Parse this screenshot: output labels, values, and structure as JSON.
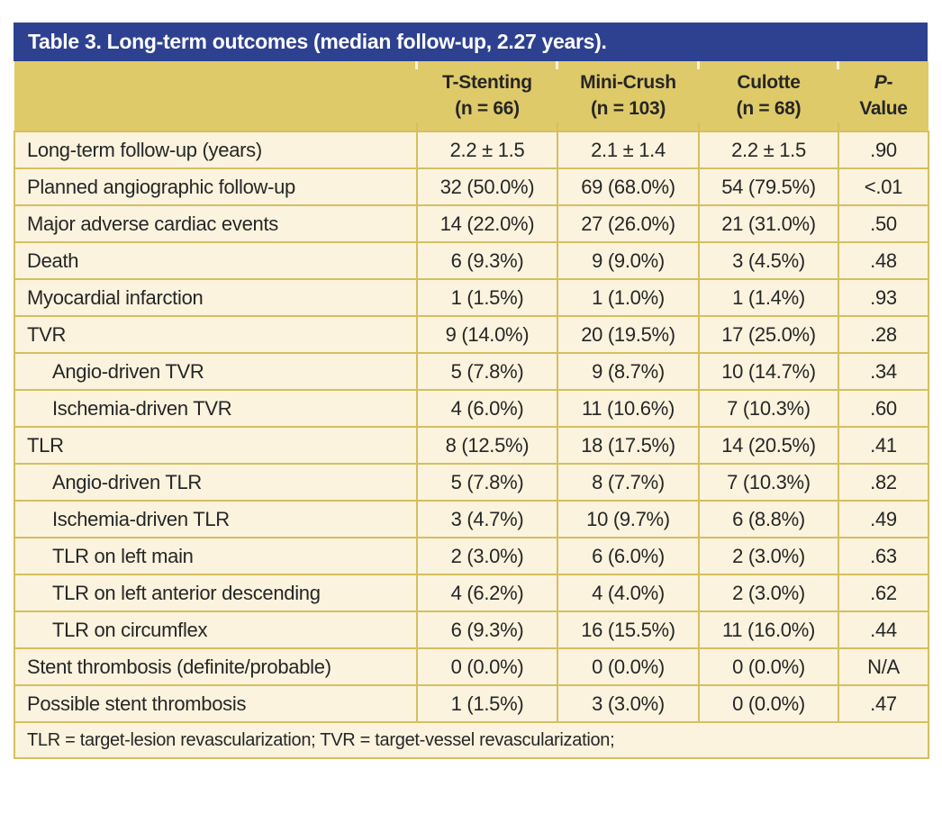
{
  "title": "Table 3. Long-term outcomes (median follow-up, 2.27 years).",
  "colors": {
    "title_bar_bg": "#2E4190",
    "title_text": "#FFFFFF",
    "header_band_bg": "#DFCA6A",
    "row_bg": "#FBF3DE",
    "rule": "#D5BF5F",
    "body_text": "#262626"
  },
  "table": {
    "columns": [
      {
        "line1": "",
        "line2": ""
      },
      {
        "line1": "T-Stenting",
        "line2": "(n = 66)"
      },
      {
        "line1": "Mini-Crush",
        "line2": "(n = 103)"
      },
      {
        "line1": "Culotte",
        "line2": "(n = 68)"
      },
      {
        "line1_italic": "P",
        "line1_rest": "-",
        "line2": "Value"
      }
    ],
    "rows": [
      {
        "label": "Long-term follow-up (years)",
        "indent": false,
        "values": [
          "2.2 ± 1.5",
          "2.1 ± 1.4",
          "2.2 ± 1.5",
          ".90"
        ]
      },
      {
        "label": "Planned angiographic follow-up",
        "indent": false,
        "values": [
          "32 (50.0%)",
          "69 (68.0%)",
          "54 (79.5%)",
          "<.01"
        ]
      },
      {
        "label": "Major adverse cardiac events",
        "indent": false,
        "values": [
          "14 (22.0%)",
          "27 (26.0%)",
          "21 (31.0%)",
          ".50"
        ]
      },
      {
        "label": "Death",
        "indent": false,
        "values": [
          "6 (9.3%)",
          "9 (9.0%)",
          "3 (4.5%)",
          ".48"
        ]
      },
      {
        "label": "Myocardial infarction",
        "indent": false,
        "values": [
          "1 (1.5%)",
          "1 (1.0%)",
          "1 (1.4%)",
          ".93"
        ]
      },
      {
        "label": "TVR",
        "indent": false,
        "values": [
          "9 (14.0%)",
          "20 (19.5%)",
          "17 (25.0%)",
          ".28"
        ]
      },
      {
        "label": "Angio-driven TVR",
        "indent": true,
        "values": [
          "5 (7.8%)",
          "9 (8.7%)",
          "10 (14.7%)",
          ".34"
        ]
      },
      {
        "label": "Ischemia-driven TVR",
        "indent": true,
        "values": [
          "4 (6.0%)",
          "11 (10.6%)",
          "7 (10.3%)",
          ".60"
        ]
      },
      {
        "label": "TLR",
        "indent": false,
        "values": [
          "8 (12.5%)",
          "18 (17.5%)",
          "14 (20.5%)",
          ".41"
        ]
      },
      {
        "label": "Angio-driven TLR",
        "indent": true,
        "values": [
          "5 (7.8%)",
          "8 (7.7%)",
          "7 (10.3%)",
          ".82"
        ]
      },
      {
        "label": "Ischemia-driven TLR",
        "indent": true,
        "values": [
          "3 (4.7%)",
          "10 (9.7%)",
          "6 (8.8%)",
          ".49"
        ]
      },
      {
        "label": "TLR on left main",
        "indent": true,
        "values": [
          "2 (3.0%)",
          "6 (6.0%)",
          "2 (3.0%)",
          ".63"
        ]
      },
      {
        "label": "TLR on left anterior descending",
        "indent": true,
        "values": [
          "4 (6.2%)",
          "4 (4.0%)",
          "2 (3.0%)",
          ".62"
        ]
      },
      {
        "label": "TLR on circumflex",
        "indent": true,
        "values": [
          "6 (9.3%)",
          "16 (15.5%)",
          "11 (16.0%)",
          ".44"
        ]
      },
      {
        "label": "Stent thrombosis (definite/probable)",
        "indent": false,
        "values": [
          "0 (0.0%)",
          "0 (0.0%)",
          "0 (0.0%)",
          "N/A"
        ]
      },
      {
        "label": "Possible stent thrombosis",
        "indent": false,
        "values": [
          "1 (1.5%)",
          "3 (3.0%)",
          "0 (0.0%)",
          ".47"
        ]
      }
    ],
    "footnote": "TLR = target-lesion revascularization; TVR = target-vessel revascularization;"
  }
}
